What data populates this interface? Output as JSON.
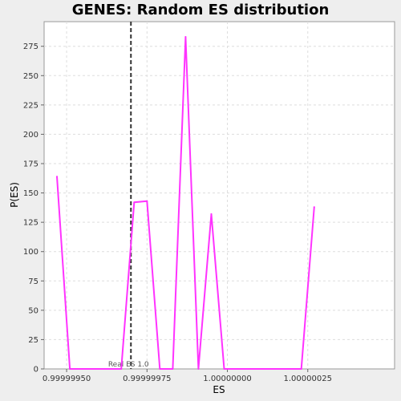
{
  "chart_data": {
    "type": "line",
    "title": "GENES: Random ES distribution",
    "xlabel": "ES",
    "ylabel": "P(ES)",
    "xlim": [
      0.99999943,
      1.00000052
    ],
    "ylim": [
      0,
      296
    ],
    "x_ticks": [
      0.9999995,
      0.99999975,
      1.0,
      1.00000025
    ],
    "x_tick_labels": [
      "0.99999950",
      "0.99999975",
      "1.00000000",
      "1.00000025"
    ],
    "y_ticks": [
      0,
      25,
      50,
      75,
      100,
      125,
      150,
      175,
      200,
      225,
      250,
      275
    ],
    "y_tick_labels": [
      "0",
      "25",
      "50",
      "75",
      "100",
      "125",
      "150",
      "175",
      "200",
      "225",
      "250",
      "275"
    ],
    "grid": true,
    "series": [
      {
        "color": "#ff33ff",
        "x": [
          0.99999947,
          0.99999951,
          0.99999955,
          0.99999959,
          0.99999963,
          0.99999967,
          0.99999971,
          0.99999975,
          0.99999979,
          0.99999983,
          0.99999987,
          0.99999991,
          0.99999995,
          0.99999999,
          1.00000003,
          1.00000007,
          1.00000011,
          1.00000015,
          1.00000019,
          1.00000023,
          1.00000027
        ],
        "y": [
          164,
          0,
          0,
          0,
          0,
          0,
          142,
          143,
          0,
          0,
          283,
          0,
          132,
          0,
          0,
          0,
          0,
          0,
          0,
          0,
          138
        ]
      }
    ],
    "reference_line": {
      "x": 0.9999997,
      "label": "Real ES 1.0",
      "color": "#333333"
    }
  }
}
